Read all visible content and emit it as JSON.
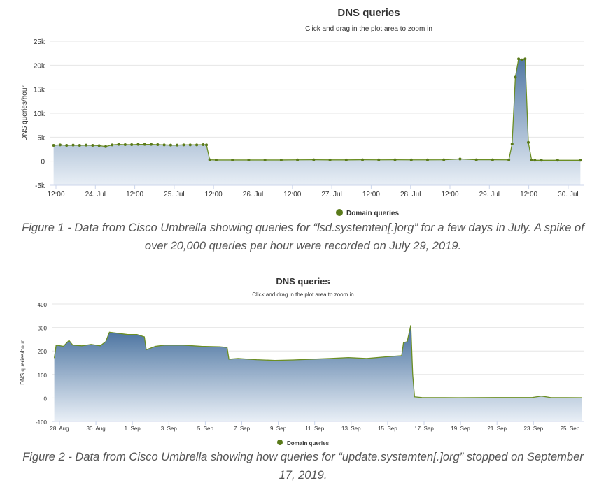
{
  "charts": [
    {
      "title": "DNS queries",
      "subtitle": "Click and drag in the plot area to zoom in",
      "ylabel": "DNS queries/hour",
      "legend": "Domain queries",
      "caption": "Figure 1 - Data from Cisco Umbrella showing queries for “lsd.systemten[.]org” for a few days in July. A spike of over 20,000 queries per hour were recorded on July 29, 2019.",
      "y_ticks": [
        "25k",
        "20k",
        "15k",
        "10k",
        "5k",
        "0",
        "-5k"
      ],
      "x_ticks": [
        "12:00",
        "24. Jul",
        "12:00",
        "25. Jul",
        "12:00",
        "26. Jul",
        "12:00",
        "27. Jul",
        "12:00",
        "28. Jul",
        "12:00",
        "29. Jul",
        "12:00",
        "30. Jul"
      ]
    },
    {
      "title": "DNS queries",
      "subtitle": "Click and drag in the plot area to zoom in",
      "ylabel": "DNS queries/hour",
      "legend": "Domain queries",
      "caption": "Figure 2 - Data from Cisco Umbrella showing how queries for “update.systemten[.]org” stopped on September 17, 2019.",
      "y_ticks": [
        "400",
        "300",
        "200",
        "100",
        "0",
        "-100"
      ],
      "x_ticks": [
        "28. Aug",
        "30. Aug",
        "1. Sep",
        "3. Sep",
        "5. Sep",
        "7. Sep",
        "9. Sep",
        "11. Sep",
        "13. Sep",
        "15. Sep",
        "17. Sep",
        "19. Sep",
        "21. Sep",
        "23. Sep",
        "25. Sep"
      ]
    }
  ],
  "colors": {
    "line": "#6b8e23",
    "marker": "#5a7a1a",
    "area_top": "#3f6a9a",
    "area_bottom": "#e6edf5",
    "grid": "#e6e6e6"
  },
  "chart_data": [
    {
      "type": "area",
      "title": "DNS queries",
      "subtitle": "Click and drag in the plot area to zoom in",
      "ylabel": "DNS queries/hour",
      "ylim": [
        -5000,
        25000
      ],
      "x_unit": "hours since 2019-07-23 12:00",
      "xlim": [
        -1,
        163
      ],
      "grid": true,
      "legend_position": "bottom",
      "markers": true,
      "series": [
        {
          "name": "Domain queries",
          "x": [
            0,
            2,
            4,
            6,
            8,
            10,
            12,
            14,
            16,
            18,
            20,
            22,
            24,
            26,
            28,
            30,
            32,
            34,
            36,
            38,
            40,
            42,
            44,
            46,
            47,
            48,
            50,
            55,
            60,
            65,
            70,
            75,
            80,
            85,
            90,
            95,
            100,
            105,
            110,
            115,
            120,
            125,
            130,
            135,
            140,
            141,
            142,
            143,
            144,
            145,
            146,
            147,
            148,
            150,
            155,
            162
          ],
          "y": [
            3300,
            3400,
            3300,
            3350,
            3300,
            3350,
            3300,
            3250,
            3050,
            3400,
            3500,
            3450,
            3450,
            3500,
            3500,
            3500,
            3450,
            3400,
            3350,
            3350,
            3400,
            3400,
            3400,
            3450,
            3400,
            300,
            250,
            250,
            250,
            250,
            250,
            280,
            300,
            270,
            270,
            300,
            280,
            300,
            280,
            280,
            300,
            470,
            300,
            300,
            280,
            3600,
            17500,
            21300,
            21100,
            21300,
            3900,
            250,
            200,
            200,
            200,
            200
          ]
        }
      ]
    },
    {
      "type": "area",
      "title": "DNS queries",
      "subtitle": "Click and drag in the plot area to zoom in",
      "ylabel": "DNS queries/hour",
      "ylim": [
        -100,
        400
      ],
      "x_unit": "days since 2019-08-28",
      "xlim": [
        -0.1,
        28.8
      ],
      "grid": true,
      "legend_position": "bottom",
      "markers": false,
      "series": [
        {
          "name": "Domain queries",
          "x": [
            0,
            0.1,
            0.5,
            0.8,
            1.0,
            1.5,
            2.0,
            2.5,
            2.8,
            3.0,
            3.5,
            4.0,
            4.5,
            4.9,
            5.0,
            5.5,
            6.0,
            7.0,
            8.0,
            9.0,
            9.4,
            9.5,
            10,
            11,
            12,
            13,
            14,
            15,
            16,
            17,
            18,
            18.9,
            19.0,
            19.2,
            19.4,
            19.5,
            19.6,
            20,
            22,
            24,
            26,
            26.5,
            27,
            28.7
          ],
          "y": [
            170,
            225,
            220,
            245,
            225,
            222,
            228,
            222,
            240,
            280,
            275,
            270,
            270,
            260,
            205,
            220,
            225,
            225,
            220,
            218,
            215,
            165,
            168,
            163,
            160,
            162,
            165,
            168,
            172,
            168,
            175,
            180,
            235,
            240,
            310,
            100,
            5,
            2,
            1,
            2,
            2,
            8,
            2,
            1
          ]
        }
      ]
    }
  ]
}
